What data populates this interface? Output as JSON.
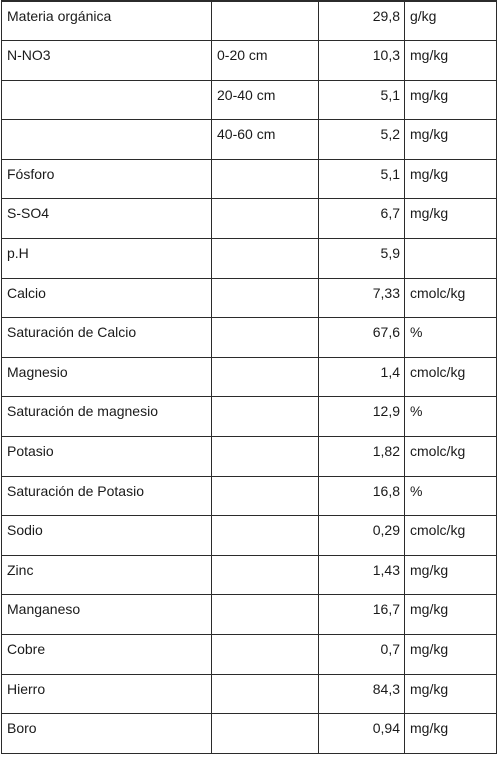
{
  "table": {
    "rows": [
      {
        "parameter": "Materia orgánica",
        "depth": "",
        "value": "29,8",
        "unit": "g/kg"
      },
      {
        "parameter": "N-NO3",
        "depth": "0-20 cm",
        "value": "10,3",
        "unit": "mg/kg"
      },
      {
        "parameter": "",
        "depth": "20-40 cm",
        "value": "5,1",
        "unit": "mg/kg"
      },
      {
        "parameter": "",
        "depth": "40-60 cm",
        "value": "5,2",
        "unit": "mg/kg"
      },
      {
        "parameter": "Fósforo",
        "depth": "",
        "value": "5,1",
        "unit": "mg/kg"
      },
      {
        "parameter": "S-SO4",
        "depth": "",
        "value": "6,7",
        "unit": "mg/kg"
      },
      {
        "parameter": "p.H",
        "depth": "",
        "value": "5,9",
        "unit": ""
      },
      {
        "parameter": "Calcio",
        "depth": "",
        "value": "7,33",
        "unit": "cmolc/kg"
      },
      {
        "parameter": "Saturación de Calcio",
        "depth": "",
        "value": "67,6",
        "unit": "%"
      },
      {
        "parameter": "Magnesio",
        "depth": "",
        "value": "1,4",
        "unit": "cmolc/kg"
      },
      {
        "parameter": "Saturación de magnesio",
        "depth": "",
        "value": "12,9",
        "unit": "%"
      },
      {
        "parameter": "Potasio",
        "depth": "",
        "value": "1,82",
        "unit": "cmolc/kg"
      },
      {
        "parameter": "Saturación de Potasio",
        "depth": "",
        "value": "16,8",
        "unit": "%"
      },
      {
        "parameter": "Sodio",
        "depth": "",
        "value": "0,29",
        "unit": "cmolc/kg"
      },
      {
        "parameter": "Zinc",
        "depth": "",
        "value": "1,43",
        "unit": "mg/kg"
      },
      {
        "parameter": "Manganeso",
        "depth": "",
        "value": "16,7",
        "unit": "mg/kg"
      },
      {
        "parameter": "Cobre",
        "depth": "",
        "value": "0,7",
        "unit": "mg/kg"
      },
      {
        "parameter": "Hierro",
        "depth": "",
        "value": "84,3",
        "unit": "mg/kg"
      },
      {
        "parameter": "Boro",
        "depth": "",
        "value": "0,94",
        "unit": "mg/kg"
      }
    ]
  }
}
